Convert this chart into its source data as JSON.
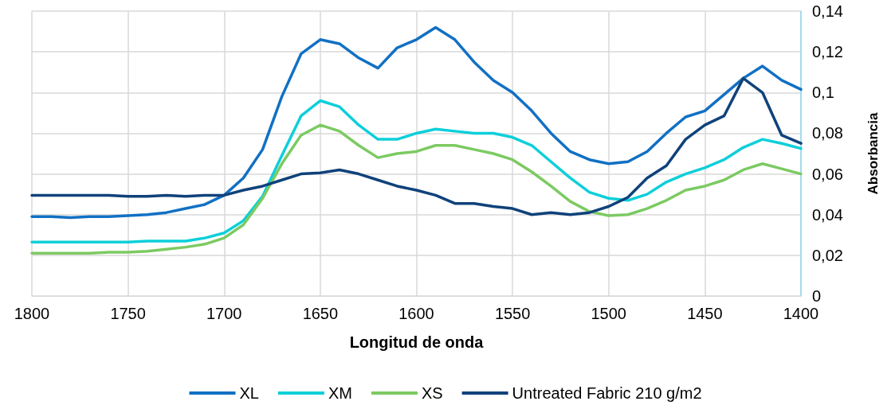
{
  "chart_data": {
    "type": "line",
    "xlabel": "Longitud de onda",
    "ylabel": "Absorbancia",
    "x": [
      1800,
      1790,
      1780,
      1770,
      1760,
      1750,
      1740,
      1730,
      1720,
      1710,
      1700,
      1690,
      1680,
      1670,
      1660,
      1650,
      1640,
      1630,
      1620,
      1610,
      1600,
      1590,
      1580,
      1570,
      1560,
      1550,
      1540,
      1530,
      1520,
      1510,
      1500,
      1490,
      1480,
      1470,
      1460,
      1450,
      1440,
      1430,
      1420,
      1410,
      1400
    ],
    "series": [
      {
        "name": "XL",
        "color": "#1170c4",
        "values": [
          0.039,
          0.039,
          0.0385,
          0.039,
          0.039,
          0.0395,
          0.04,
          0.041,
          0.043,
          0.045,
          0.0495,
          0.058,
          0.072,
          0.098,
          0.119,
          0.126,
          0.124,
          0.117,
          0.112,
          0.122,
          0.126,
          0.132,
          0.126,
          0.115,
          0.106,
          0.1,
          0.091,
          0.08,
          0.071,
          0.067,
          0.065,
          0.066,
          0.071,
          0.08,
          0.088,
          0.091,
          0.099,
          0.107,
          0.113,
          0.106,
          0.1015
        ]
      },
      {
        "name": "XM",
        "color": "#0dcfda",
        "values": [
          0.0265,
          0.0265,
          0.0265,
          0.0265,
          0.0265,
          0.0265,
          0.027,
          0.027,
          0.027,
          0.0285,
          0.031,
          0.037,
          0.049,
          0.069,
          0.0885,
          0.096,
          0.093,
          0.084,
          0.077,
          0.077,
          0.08,
          0.082,
          0.081,
          0.08,
          0.08,
          0.078,
          0.074,
          0.066,
          0.058,
          0.051,
          0.048,
          0.047,
          0.05,
          0.056,
          0.06,
          0.063,
          0.067,
          0.073,
          0.077,
          0.075,
          0.0725
        ]
      },
      {
        "name": "XS",
        "color": "#7cca62",
        "values": [
          0.021,
          0.021,
          0.021,
          0.021,
          0.0215,
          0.0215,
          0.022,
          0.023,
          0.024,
          0.0255,
          0.0285,
          0.035,
          0.048,
          0.065,
          0.079,
          0.084,
          0.081,
          0.074,
          0.068,
          0.07,
          0.071,
          0.074,
          0.074,
          0.072,
          0.07,
          0.067,
          0.061,
          0.054,
          0.0465,
          0.0415,
          0.0395,
          0.04,
          0.043,
          0.047,
          0.052,
          0.054,
          0.057,
          0.062,
          0.065,
          0.0625,
          0.06
        ]
      },
      {
        "name": "Untreated Fabric 210 g/m2",
        "color": "#10427a",
        "values": [
          0.0495,
          0.0495,
          0.0495,
          0.0495,
          0.0495,
          0.049,
          0.049,
          0.0495,
          0.049,
          0.0495,
          0.0495,
          0.052,
          0.054,
          0.057,
          0.06,
          0.0605,
          0.062,
          0.06,
          0.057,
          0.054,
          0.052,
          0.0495,
          0.0455,
          0.0455,
          0.044,
          0.043,
          0.04,
          0.041,
          0.04,
          0.041,
          0.044,
          0.0485,
          0.058,
          0.064,
          0.077,
          0.084,
          0.0885,
          0.107,
          0.1,
          0.079,
          0.075
        ]
      }
    ],
    "xlim": [
      1800,
      1400
    ],
    "xticks": [
      1800,
      1750,
      1700,
      1650,
      1600,
      1550,
      1500,
      1450,
      1400
    ],
    "ylim": [
      0,
      0.14
    ],
    "yticks": [
      0,
      {
        "value": 0.02,
        "label": "0,02"
      },
      {
        "value": 0.04,
        "label": "0,04"
      },
      {
        "value": 0.06,
        "label": "0,06"
      },
      {
        "value": 0.08,
        "label": "0,08"
      },
      {
        "value": 0.1,
        "label": "0,1"
      },
      {
        "value": 0.12,
        "label": "0,12"
      },
      {
        "value": 0.14,
        "label": "0,14"
      }
    ],
    "grid": true,
    "legend": "bottom",
    "marker": "none",
    "line_style": "solid"
  }
}
